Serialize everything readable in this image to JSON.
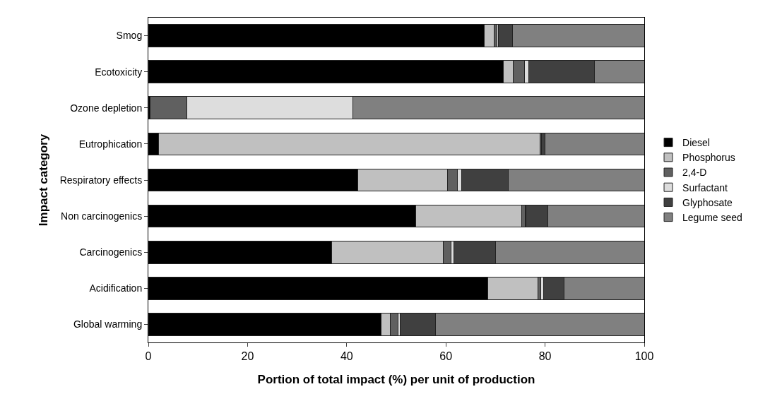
{
  "chart_data": {
    "type": "bar",
    "orientation": "horizontal",
    "stacked": true,
    "xlabel": "Portion of total impact (%) per unit of production",
    "ylabel": "Impact category",
    "categories": [
      "Smog",
      "Ecotoxicity",
      "Ozone depletion",
      "Eutrophication",
      "Respiratory effects",
      "Non carcinogenics",
      "Carcinogenics",
      "Acidification",
      "Global warming"
    ],
    "series": [
      {
        "name": "Diesel",
        "color": "#000000",
        "values": [
          67.8,
          71.6,
          0.4,
          2.1,
          42.3,
          53.9,
          37.0,
          68.5,
          47.0
        ]
      },
      {
        "name": "Phosphorus",
        "color": "#c0c0c0",
        "values": [
          1.9,
          2.0,
          0,
          76.9,
          18.0,
          21.4,
          22.5,
          10.0,
          1.8
        ]
      },
      {
        "name": "2,4-D",
        "color": "#606060",
        "values": [
          0.6,
          2.3,
          7.4,
          0.3,
          2.0,
          0.7,
          1.6,
          0.7,
          1.5
        ]
      },
      {
        "name": "Surfactant",
        "color": "#dddddd",
        "values": [
          0.3,
          0.8,
          33.4,
          0,
          0.9,
          0.2,
          0.5,
          0.5,
          0.5
        ]
      },
      {
        "name": "Glyphosate",
        "color": "#404040",
        "values": [
          2.8,
          13.2,
          0,
          0.7,
          9.4,
          4.3,
          8.4,
          4.1,
          7.1
        ]
      },
      {
        "name": "Legume seed",
        "color": "#808080",
        "values": [
          26.6,
          10.1,
          58.8,
          20.0,
          27.4,
          19.5,
          30.0,
          16.2,
          42.1
        ]
      }
    ],
    "xlim": [
      0,
      100
    ],
    "xticks": [
      0,
      20,
      40,
      60,
      80,
      100
    ],
    "grid": false,
    "legend": "right"
  }
}
